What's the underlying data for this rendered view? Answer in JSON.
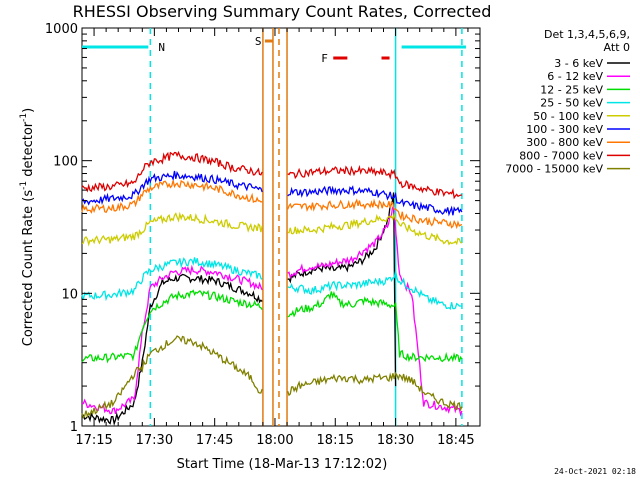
{
  "chart_data": {
    "type": "line",
    "title": "RHESSI Observing Summary Count Rates, Corrected",
    "xlabel": "Start Time (18-Mar-13 17:12:02)",
    "ylabel": "Corrected Count Rate (s⁻¹ detector⁻¹)",
    "ylabel_main": "Corrected Count Rate (s",
    "ylabel_mid": " detector",
    "ylabel_end": ")",
    "ylabel_sup": "-1",
    "y_scale": "log",
    "ylim": [
      1,
      1000
    ],
    "xlim_minutes": [
      17.2,
      18.85
    ],
    "x_ticks": [
      "17:15",
      "17:30",
      "17:45",
      "18:00",
      "18:15",
      "18:30",
      "18:45"
    ],
    "x_tick_minutes": [
      1035,
      1050,
      1065,
      1080,
      1095,
      1110,
      1125
    ],
    "y_ticks": [
      "1",
      "10",
      "100",
      "1000"
    ],
    "y_tick_values": [
      1,
      10,
      100,
      1000
    ],
    "grid": false,
    "legend_placement": "right",
    "legend_header": [
      "Det 1,3,4,5,6,9,",
      "Att 0"
    ],
    "annotation_date": "24-Oct-2021 02:18",
    "flags": [
      {
        "label": "N",
        "color": "#00e5e5",
        "segments_minutes": [
          [
            1032,
            1048.5
          ],
          [
            1111.5,
            1127.5
          ]
        ]
      },
      {
        "label": "S",
        "color": "#e07a10",
        "segments_minutes": [
          [
            1077.5,
            1079.5
          ]
        ]
      },
      {
        "label": "F",
        "color": "#e00000",
        "segments_minutes": [
          [
            1094.5,
            1098
          ],
          [
            1106.5,
            1108.5
          ]
        ]
      }
    ],
    "vertical_lines": [
      {
        "color": "#00e5e5",
        "style": "dashed",
        "minute": 1049
      },
      {
        "color": "#00e5e5",
        "style": "solid",
        "minute": 1110
      },
      {
        "color": "#00e5e5",
        "style": "dashed",
        "minute": 1126.5
      },
      {
        "color": "#e07a10",
        "style": "solid",
        "minute": 1077
      },
      {
        "color": "#e07a10",
        "style": "solid",
        "minute": 1079.5
      },
      {
        "color": "#e07a10",
        "style": "dashed",
        "minute": 1081
      },
      {
        "color": "#e07a10",
        "style": "solid",
        "minute": 1083
      }
    ],
    "gap_minutes": [
      1077,
      1083
    ],
    "series": [
      {
        "name": "3 - 6 keV",
        "color": "#000000",
        "points": [
          [
            1032,
            1.2
          ],
          [
            1040,
            1.1
          ],
          [
            1045,
            1.5
          ],
          [
            1047,
            3
          ],
          [
            1049,
            8
          ],
          [
            1052,
            12
          ],
          [
            1055,
            13
          ],
          [
            1060,
            13
          ],
          [
            1065,
            12.5
          ],
          [
            1070,
            11
          ],
          [
            1074,
            10
          ],
          [
            1076.5,
            9
          ],
          [
            1083.5,
            13
          ],
          [
            1086,
            14
          ],
          [
            1089,
            15
          ],
          [
            1092,
            15.5
          ],
          [
            1095,
            15
          ],
          [
            1099,
            16
          ],
          [
            1102,
            18
          ],
          [
            1105,
            22
          ],
          [
            1108,
            35
          ],
          [
            1109.5,
            55
          ],
          [
            1110,
            2
          ]
        ]
      },
      {
        "name": "6 - 12 keV",
        "color": "#ff00ff",
        "points": [
          [
            1032,
            1.5
          ],
          [
            1040,
            1.3
          ],
          [
            1045,
            1.6
          ],
          [
            1047,
            5
          ],
          [
            1049,
            11
          ],
          [
            1052,
            13
          ],
          [
            1055,
            14.5
          ],
          [
            1060,
            15
          ],
          [
            1065,
            14.5
          ],
          [
            1070,
            13
          ],
          [
            1074,
            12
          ],
          [
            1076.5,
            11
          ],
          [
            1083.5,
            14
          ],
          [
            1086,
            15
          ],
          [
            1089,
            16
          ],
          [
            1092,
            16
          ],
          [
            1095,
            17
          ],
          [
            1099,
            18
          ],
          [
            1102,
            21
          ],
          [
            1105,
            24
          ],
          [
            1108,
            32
          ],
          [
            1109.5,
            45
          ],
          [
            1111,
            14
          ],
          [
            1113,
            11
          ],
          [
            1114,
            10
          ],
          [
            1117,
            1.5
          ],
          [
            1126.5,
            1.3
          ]
        ]
      },
      {
        "name": "12 - 25 keV",
        "color": "#00dd00",
        "points": [
          [
            1032,
            3.2
          ],
          [
            1040,
            3.3
          ],
          [
            1045,
            3.4
          ],
          [
            1047,
            5.5
          ],
          [
            1049,
            7.5
          ],
          [
            1052,
            8.5
          ],
          [
            1055,
            9.5
          ],
          [
            1060,
            10
          ],
          [
            1065,
            9.5
          ],
          [
            1070,
            8.7
          ],
          [
            1074,
            8.3
          ],
          [
            1076.5,
            8
          ],
          [
            1083.5,
            7
          ],
          [
            1086,
            7.5
          ],
          [
            1089,
            7.8
          ],
          [
            1092,
            8.5
          ],
          [
            1094,
            10
          ],
          [
            1096,
            8.5
          ],
          [
            1099,
            8.2
          ],
          [
            1102,
            8.8
          ],
          [
            1105,
            8.5
          ],
          [
            1108,
            8.3
          ],
          [
            1110,
            8
          ],
          [
            1111,
            3.5
          ],
          [
            1114,
            3.3
          ],
          [
            1120,
            3.3
          ],
          [
            1126.5,
            3.2
          ]
        ]
      },
      {
        "name": "25 - 50 keV",
        "color": "#00e5e5",
        "points": [
          [
            1032,
            9.5
          ],
          [
            1040,
            9.8
          ],
          [
            1045,
            10.5
          ],
          [
            1047,
            13
          ],
          [
            1049,
            15
          ],
          [
            1052,
            16
          ],
          [
            1055,
            17
          ],
          [
            1060,
            17.5
          ],
          [
            1065,
            16.5
          ],
          [
            1070,
            15
          ],
          [
            1074,
            14
          ],
          [
            1076.5,
            13.5
          ],
          [
            1083.5,
            11
          ],
          [
            1086,
            11
          ],
          [
            1089,
            10.5
          ],
          [
            1092,
            11
          ],
          [
            1095,
            11.5
          ],
          [
            1099,
            11.5
          ],
          [
            1102,
            11.8
          ],
          [
            1105,
            12.2
          ],
          [
            1108,
            12.5
          ],
          [
            1110,
            14
          ],
          [
            1111,
            12.5
          ],
          [
            1114,
            11
          ],
          [
            1118,
            9
          ],
          [
            1122,
            8.2
          ],
          [
            1126.5,
            8
          ]
        ]
      },
      {
        "name": "50 - 100 keV",
        "color": "#cccc00",
        "points": [
          [
            1032,
            25
          ],
          [
            1040,
            25.5
          ],
          [
            1045,
            27
          ],
          [
            1047,
            30
          ],
          [
            1049,
            34
          ],
          [
            1052,
            36
          ],
          [
            1055,
            38
          ],
          [
            1060,
            37
          ],
          [
            1065,
            35
          ],
          [
            1070,
            32.5
          ],
          [
            1074,
            31.5
          ],
          [
            1076.5,
            31
          ],
          [
            1083.5,
            30
          ],
          [
            1086,
            30
          ],
          [
            1089,
            30
          ],
          [
            1092,
            31
          ],
          [
            1095,
            32
          ],
          [
            1099,
            33
          ],
          [
            1102,
            34.5
          ],
          [
            1105,
            36
          ],
          [
            1108,
            37
          ],
          [
            1110,
            38
          ],
          [
            1111,
            33
          ],
          [
            1114,
            30
          ],
          [
            1118,
            27
          ],
          [
            1122,
            25
          ],
          [
            1126.5,
            24
          ]
        ]
      },
      {
        "name": "100 - 300 keV",
        "color": "#0000ff",
        "points": [
          [
            1032,
            49
          ],
          [
            1040,
            52
          ],
          [
            1045,
            55
          ],
          [
            1047,
            65
          ],
          [
            1049,
            73
          ],
          [
            1052,
            75
          ],
          [
            1055,
            78
          ],
          [
            1060,
            76
          ],
          [
            1065,
            72
          ],
          [
            1070,
            66
          ],
          [
            1074,
            63
          ],
          [
            1076.5,
            60
          ],
          [
            1083.5,
            58
          ],
          [
            1086,
            58
          ],
          [
            1089,
            58
          ],
          [
            1092,
            59
          ],
          [
            1095,
            60
          ],
          [
            1099,
            60
          ],
          [
            1102,
            59
          ],
          [
            1105,
            58
          ],
          [
            1108,
            55
          ],
          [
            1110,
            53
          ],
          [
            1111,
            48
          ],
          [
            1114,
            46
          ],
          [
            1118,
            44
          ],
          [
            1122,
            42
          ],
          [
            1126.5,
            41
          ]
        ]
      },
      {
        "name": "300 - 800 keV",
        "color": "#ff7700",
        "points": [
          [
            1032,
            43
          ],
          [
            1040,
            44
          ],
          [
            1045,
            47
          ],
          [
            1047,
            56
          ],
          [
            1049,
            62
          ],
          [
            1052,
            65
          ],
          [
            1055,
            68
          ],
          [
            1060,
            66
          ],
          [
            1065,
            62
          ],
          [
            1070,
            56
          ],
          [
            1074,
            52
          ],
          [
            1076.5,
            49
          ],
          [
            1083.5,
            45
          ],
          [
            1086,
            45
          ],
          [
            1089,
            45.5
          ],
          [
            1092,
            46
          ],
          [
            1095,
            46.5
          ],
          [
            1099,
            47
          ],
          [
            1102,
            47
          ],
          [
            1105,
            47
          ],
          [
            1108,
            46.5
          ],
          [
            1110,
            45
          ],
          [
            1111,
            39
          ],
          [
            1114,
            37
          ],
          [
            1118,
            35
          ],
          [
            1122,
            34
          ],
          [
            1126.5,
            33
          ]
        ]
      },
      {
        "name": "800 - 7000 keV",
        "color": "#dd0000",
        "points": [
          [
            1032,
            62
          ],
          [
            1040,
            64
          ],
          [
            1045,
            68
          ],
          [
            1047,
            85
          ],
          [
            1049,
            98
          ],
          [
            1052,
            103
          ],
          [
            1055,
            110
          ],
          [
            1060,
            106
          ],
          [
            1065,
            98
          ],
          [
            1070,
            88
          ],
          [
            1074,
            84
          ],
          [
            1076.5,
            80
          ],
          [
            1083.5,
            78
          ],
          [
            1086,
            80
          ],
          [
            1089,
            82
          ],
          [
            1092,
            83
          ],
          [
            1095,
            84
          ],
          [
            1099,
            84
          ],
          [
            1102,
            83
          ],
          [
            1105,
            82
          ],
          [
            1108,
            80
          ],
          [
            1110,
            78
          ],
          [
            1111,
            68
          ],
          [
            1114,
            64
          ],
          [
            1118,
            60
          ],
          [
            1122,
            57
          ],
          [
            1126.5,
            55
          ]
        ]
      },
      {
        "name": "7000 - 15000 keV",
        "color": "#808000",
        "points": [
          [
            1032,
            1.2
          ],
          [
            1040,
            1.5
          ],
          [
            1045,
            2.5
          ],
          [
            1047,
            2.8
          ],
          [
            1049,
            3.5
          ],
          [
            1052,
            4
          ],
          [
            1055,
            4.5
          ],
          [
            1060,
            4.3
          ],
          [
            1065,
            3.5
          ],
          [
            1070,
            2.8
          ],
          [
            1074,
            2.3
          ],
          [
            1076.5,
            1.8
          ],
          [
            1083.5,
            1.8
          ],
          [
            1086,
            2
          ],
          [
            1089,
            2.1
          ],
          [
            1092,
            2.2
          ],
          [
            1095,
            2.3
          ],
          [
            1099,
            2.3
          ],
          [
            1102,
            2.2
          ],
          [
            1105,
            2.3
          ],
          [
            1108,
            2.3
          ],
          [
            1110,
            2.4
          ],
          [
            1111,
            2.4
          ],
          [
            1114,
            2.2
          ],
          [
            1118,
            1.7
          ],
          [
            1122,
            1.5
          ],
          [
            1126.5,
            1.4
          ]
        ]
      }
    ]
  }
}
